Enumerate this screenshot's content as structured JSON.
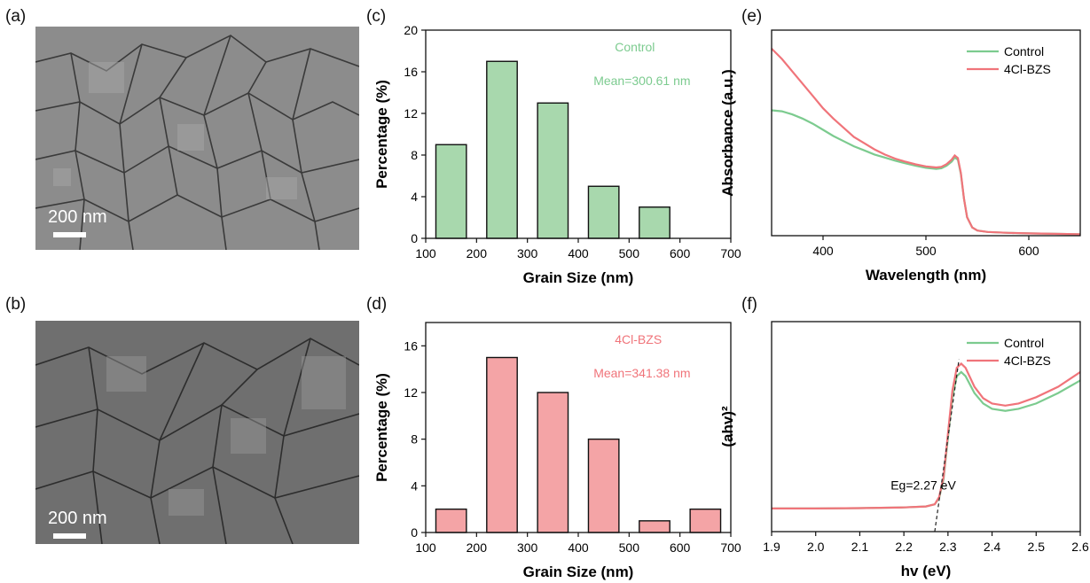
{
  "panels": {
    "a": "(a)",
    "b": "(b)",
    "c": "(c)",
    "d": "(d)",
    "e": "(e)",
    "f": "(f)"
  },
  "sem": {
    "a": {
      "scale_label": "200 nm"
    },
    "b": {
      "scale_label": "200 nm"
    }
  },
  "colors": {
    "control": "#7ccb8f",
    "control_bar": "#a8d8ad",
    "bzs": "#f0747a",
    "bzs_bar": "#f4a4a6",
    "axis": "#111111"
  },
  "chart_data": [
    {
      "id": "c",
      "type": "bar",
      "categories": [
        150,
        250,
        350,
        450,
        550
      ],
      "values": [
        9,
        17,
        13,
        5,
        3
      ],
      "bar_width": 60,
      "xlabel": "Grain Size (nm)",
      "ylabel": "Percentage (%)",
      "xlim": [
        100,
        700
      ],
      "ylim": [
        0,
        20
      ],
      "xticks": [
        100,
        200,
        300,
        400,
        500,
        600,
        700
      ],
      "yticks": [
        0,
        4,
        8,
        12,
        16,
        20
      ],
      "annotations": [
        "Control",
        "Mean=300.61 nm"
      ]
    },
    {
      "id": "d",
      "type": "bar",
      "categories": [
        150,
        250,
        350,
        450,
        550,
        650
      ],
      "values": [
        2,
        15,
        12,
        8,
        1,
        2
      ],
      "bar_width": 60,
      "xlabel": "Grain Size (nm)",
      "ylabel": "Percentage (%)",
      "xlim": [
        100,
        700
      ],
      "ylim": [
        0,
        18
      ],
      "xticks": [
        100,
        200,
        300,
        400,
        500,
        600,
        700
      ],
      "yticks": [
        0,
        4,
        8,
        12,
        16
      ],
      "annotations": [
        "4Cl-BZS",
        "Mean=341.38 nm"
      ]
    },
    {
      "id": "e",
      "type": "line",
      "xlabel": "Wavelength (nm)",
      "ylabel": "Absorbance (a.u.)",
      "xlim": [
        350,
        650
      ],
      "ylim": [
        0,
        1
      ],
      "xticks": [
        400,
        500,
        600
      ],
      "legend": "top-right",
      "series": [
        {
          "name": "Control",
          "x": [
            350,
            360,
            370,
            380,
            390,
            400,
            410,
            420,
            430,
            440,
            450,
            460,
            470,
            480,
            490,
            500,
            510,
            515,
            520,
            525,
            528,
            531,
            534,
            537,
            540,
            545,
            550,
            560,
            580,
            600,
            625,
            650
          ],
          "y": [
            0.61,
            0.605,
            0.59,
            0.57,
            0.545,
            0.515,
            0.485,
            0.46,
            0.435,
            0.415,
            0.395,
            0.38,
            0.365,
            0.352,
            0.34,
            0.33,
            0.325,
            0.328,
            0.34,
            0.36,
            0.38,
            0.37,
            0.3,
            0.18,
            0.09,
            0.04,
            0.025,
            0.018,
            0.014,
            0.011,
            0.009,
            0.007
          ]
        },
        {
          "name": "4Cl-BZS",
          "x": [
            350,
            360,
            370,
            380,
            390,
            400,
            410,
            420,
            430,
            440,
            450,
            460,
            470,
            480,
            490,
            500,
            510,
            515,
            520,
            525,
            528,
            531,
            534,
            537,
            540,
            545,
            550,
            560,
            580,
            600,
            625,
            650
          ],
          "y": [
            0.91,
            0.86,
            0.8,
            0.74,
            0.68,
            0.62,
            0.57,
            0.525,
            0.48,
            0.45,
            0.42,
            0.395,
            0.375,
            0.36,
            0.347,
            0.337,
            0.332,
            0.335,
            0.348,
            0.37,
            0.39,
            0.378,
            0.305,
            0.18,
            0.09,
            0.04,
            0.025,
            0.018,
            0.014,
            0.011,
            0.009,
            0.007
          ]
        }
      ]
    },
    {
      "id": "f",
      "type": "line",
      "xlabel": "hv (eV)",
      "ylabel": "(ahv)²",
      "xlim": [
        1.9,
        2.6
      ],
      "ylim": [
        0,
        1
      ],
      "xticks": [
        "1.9",
        "2.0",
        "2.1",
        "2.2",
        "2.3",
        "2.4",
        "2.5",
        "2.6"
      ],
      "legend": "top-right",
      "annotation": "Eg=2.27 eV",
      "tangent": {
        "x": [
          2.27,
          2.325
        ],
        "y": [
          0.0,
          0.82
        ]
      },
      "series": [
        {
          "name": "Control",
          "x": [
            1.9,
            2.0,
            2.1,
            2.2,
            2.25,
            2.27,
            2.28,
            2.29,
            2.3,
            2.31,
            2.32,
            2.33,
            2.34,
            2.36,
            2.38,
            2.4,
            2.43,
            2.46,
            2.5,
            2.55,
            2.6
          ],
          "y": [
            0.11,
            0.11,
            0.112,
            0.115,
            0.12,
            0.13,
            0.16,
            0.25,
            0.45,
            0.64,
            0.74,
            0.76,
            0.74,
            0.66,
            0.61,
            0.585,
            0.575,
            0.585,
            0.61,
            0.66,
            0.72
          ]
        },
        {
          "name": "4Cl-BZS",
          "x": [
            1.9,
            2.0,
            2.1,
            2.2,
            2.25,
            2.27,
            2.28,
            2.29,
            2.3,
            2.31,
            2.32,
            2.33,
            2.34,
            2.36,
            2.38,
            2.4,
            2.43,
            2.46,
            2.5,
            2.55,
            2.6
          ],
          "y": [
            0.11,
            0.11,
            0.112,
            0.115,
            0.12,
            0.13,
            0.165,
            0.26,
            0.47,
            0.67,
            0.78,
            0.8,
            0.78,
            0.69,
            0.635,
            0.61,
            0.6,
            0.61,
            0.64,
            0.69,
            0.76
          ]
        }
      ]
    }
  ]
}
